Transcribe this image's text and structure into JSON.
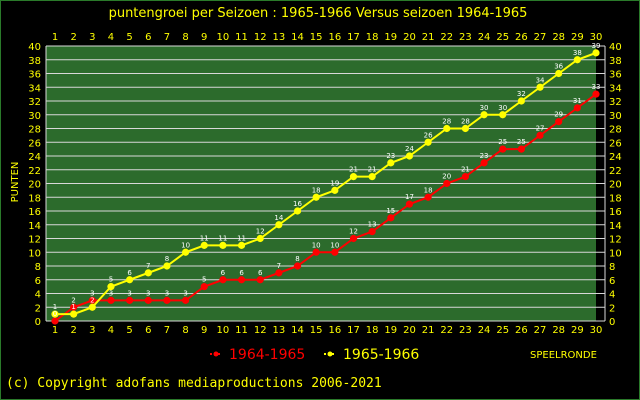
{
  "chart_data": {
    "type": "line",
    "title": "puntengroei per Seizoen : 1965-1966 Versus seizoen 1964-1965",
    "ylabel": "PUNTEN",
    "xlabel": "SPEELRONDE",
    "x": [
      1,
      2,
      3,
      4,
      5,
      6,
      7,
      8,
      9,
      10,
      11,
      12,
      13,
      14,
      15,
      16,
      17,
      18,
      19,
      20,
      21,
      22,
      23,
      24,
      25,
      26,
      27,
      28,
      29,
      30
    ],
    "xlim": [
      1,
      30
    ],
    "ylim": [
      0,
      40
    ],
    "yticks": [
      0,
      2,
      4,
      6,
      8,
      10,
      12,
      14,
      16,
      18,
      20,
      22,
      24,
      26,
      28,
      30,
      32,
      34,
      36,
      38,
      40
    ],
    "grid": true,
    "legend": "bottom",
    "colors": {
      "background": "#2c6b2c",
      "grid": "#dcdcdc",
      "axis_text": "#ffff00",
      "series_1964": "#ff0000",
      "series_1965": "#ffff00",
      "point_labels": "#ffffff"
    },
    "series": [
      {
        "name": "1964-1965",
        "color": "#ff0000",
        "values": [
          0,
          2,
          3,
          3,
          3,
          3,
          3,
          3,
          5,
          6,
          6,
          6,
          7,
          8,
          10,
          10,
          12,
          13,
          15,
          17,
          18,
          20,
          21,
          23,
          25,
          25,
          27,
          29,
          31,
          33
        ]
      },
      {
        "name": "1965-1966",
        "color": "#ffff00",
        "values": [
          1,
          1,
          2,
          5,
          6,
          7,
          8,
          10,
          11,
          11,
          11,
          12,
          14,
          16,
          18,
          19,
          21,
          21,
          23,
          24,
          26,
          28,
          28,
          30,
          30,
          32,
          34,
          36,
          38,
          39
        ]
      }
    ]
  },
  "footer": {
    "copyright": "(c) Copyright adofans mediaproductions 2006-2021"
  }
}
